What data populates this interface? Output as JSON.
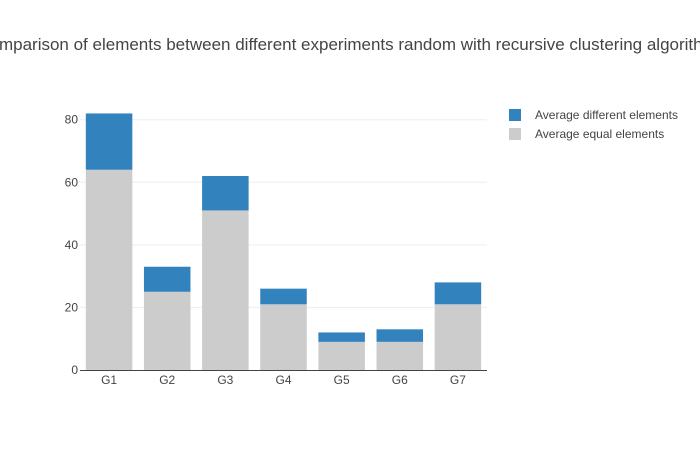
{
  "chart_data": {
    "type": "bar",
    "stacked": true,
    "title": "Comparison of elements between different experiments random with recursive clustering algorithm",
    "categories": [
      "G1",
      "G2",
      "G3",
      "G4",
      "G5",
      "G6",
      "G7"
    ],
    "series": [
      {
        "name": "Average equal elements",
        "values": [
          64,
          25,
          51,
          21,
          9,
          9,
          21
        ],
        "color": "#cccccc"
      },
      {
        "name": "Average different elements",
        "values": [
          18,
          8,
          11,
          5,
          3,
          4,
          7
        ],
        "color": "#3182bd"
      }
    ],
    "legend_order": [
      1,
      0
    ],
    "yticks": [
      0,
      20,
      40,
      60,
      80
    ],
    "ylim": [
      0,
      86.3
    ],
    "grid": true,
    "legend_position": "top-right"
  }
}
